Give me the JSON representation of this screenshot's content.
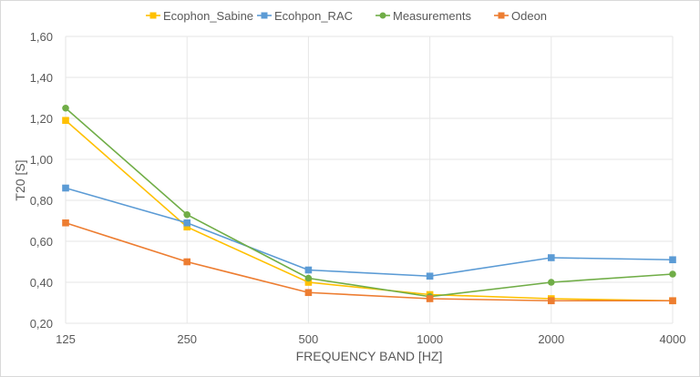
{
  "chart_data": {
    "type": "line",
    "title": "",
    "xlabel": "FREQUENCY BAND [HZ]",
    "ylabel": "T20 [S]",
    "categories": [
      "125",
      "250",
      "500",
      "1000",
      "2000",
      "4000"
    ],
    "ylim": [
      0.2,
      1.6
    ],
    "yticks": [
      "0,20",
      "0,40",
      "0,60",
      "0,80",
      "1,00",
      "1,20",
      "1,40",
      "1,60"
    ],
    "grid": true,
    "legend": "top",
    "series": [
      {
        "name": "Ecophon_Sabine",
        "color": "#FFC000",
        "marker": "square",
        "values": [
          1.19,
          0.67,
          0.4,
          0.34,
          0.32,
          0.31
        ]
      },
      {
        "name": "Ecohpon_RAC",
        "color": "#5B9BD5",
        "marker": "square",
        "values": [
          0.86,
          0.69,
          0.46,
          0.43,
          0.52,
          0.51
        ]
      },
      {
        "name": "Measurements",
        "color": "#70AD47",
        "marker": "circle",
        "values": [
          1.25,
          0.73,
          0.42,
          0.33,
          0.4,
          0.44
        ]
      },
      {
        "name": "Odeon",
        "color": "#ED7D31",
        "marker": "square",
        "values": [
          0.69,
          0.5,
          0.35,
          0.32,
          0.31,
          0.31
        ]
      }
    ]
  }
}
